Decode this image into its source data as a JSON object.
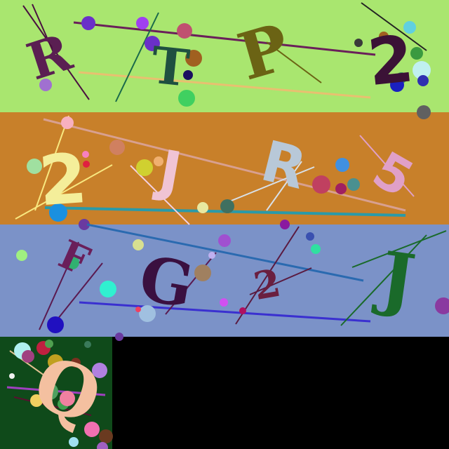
{
  "canvas": {
    "background": "#000000"
  },
  "bands": [
    {
      "name": "band-1",
      "background": "#a9e66f",
      "characters": [
        "R",
        "T",
        "P",
        "2"
      ],
      "colors": [
        "#5a1f52",
        "#1f5040",
        "#6b6314",
        "#3b1236"
      ]
    },
    {
      "name": "band-2",
      "background": "#c8802a",
      "characters": [
        "2",
        "J",
        "R",
        "5"
      ],
      "colors": [
        "#f4ee9a",
        "#f0c4d4",
        "#b8c8d8",
        "#e0a0c8"
      ]
    },
    {
      "name": "band-3",
      "background": "#7b92c8",
      "characters": [
        "F",
        "G",
        "2",
        "J"
      ],
      "colors": [
        "#6a1f5a",
        "#3a1040",
        "#6a1f40",
        "#1a6a2a"
      ]
    }
  ],
  "tile": {
    "name": "tile-4",
    "background": "#0f4a1a",
    "characters": [
      "Q"
    ],
    "colors": [
      "#f4c0a0"
    ]
  },
  "empty_area": {
    "background": "#000000"
  }
}
